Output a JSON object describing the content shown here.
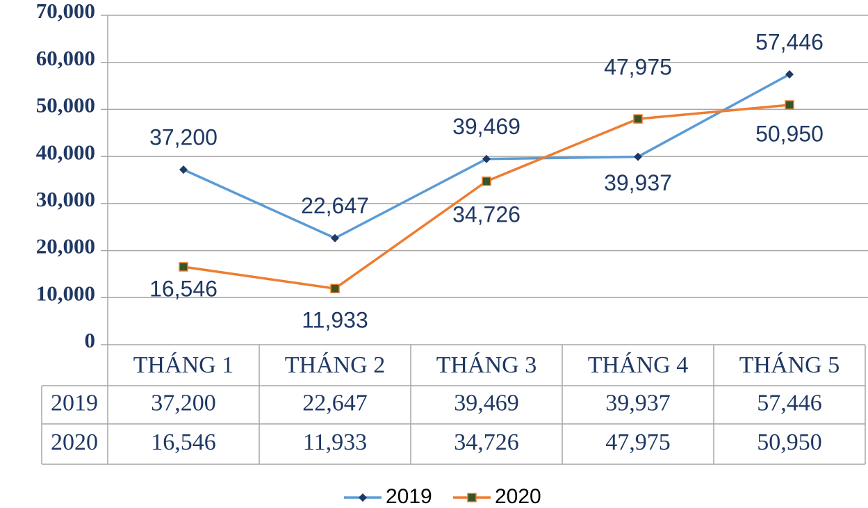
{
  "chart_data": {
    "type": "line",
    "categories": [
      "THÁNG 1",
      "THÁNG 2",
      "THÁNG 3",
      "THÁNG 4",
      "THÁNG 5"
    ],
    "series": [
      {
        "name": "2019",
        "color": "#5b9bd5",
        "marker_color": "#1f3864",
        "marker": "diamond",
        "values": [
          37200,
          22647,
          39469,
          39937,
          57446
        ],
        "value_labels": [
          "37,200",
          "22,647",
          "39,469",
          "39,937",
          "57,446"
        ]
      },
      {
        "name": "2020",
        "color": "#ed7d31",
        "marker_color": "#375623",
        "marker": "square",
        "values": [
          16546,
          11933,
          34726,
          47975,
          50950
        ],
        "value_labels": [
          "16,546",
          "11,933",
          "34,726",
          "47,975",
          "50,950"
        ]
      }
    ],
    "ylim": [
      0,
      70000
    ],
    "yticks": [
      0,
      {
        "value": 10000,
        "label": "10,000"
      },
      {
        "value": 20000,
        "label": "20,000"
      },
      {
        "value": 30000,
        "label": "30,000"
      },
      {
        "value": 40000,
        "label": "40,000"
      },
      {
        "value": 50000,
        "label": "50,000"
      },
      {
        "value": 60000,
        "label": "60,000"
      },
      {
        "value": 70000,
        "label": "70,000"
      }
    ],
    "grid": true,
    "data_table": true,
    "legend": "bottom"
  }
}
